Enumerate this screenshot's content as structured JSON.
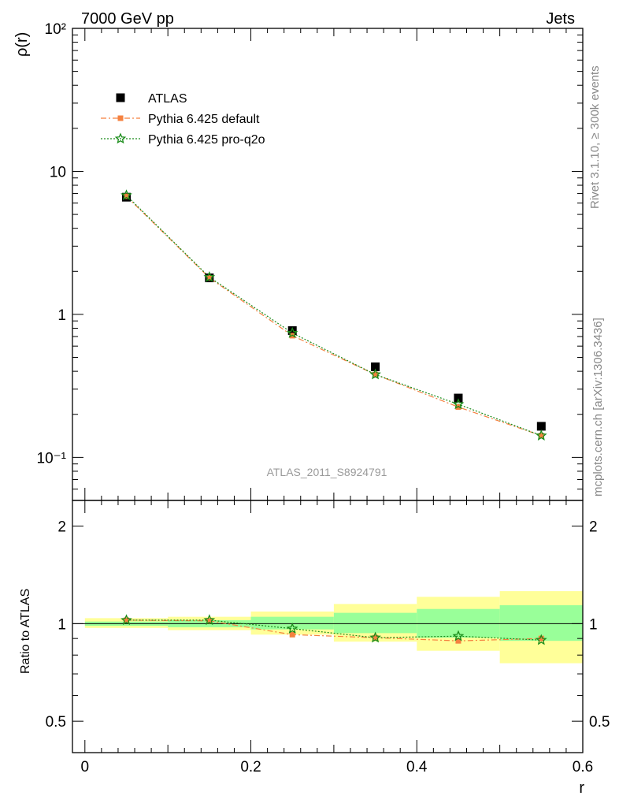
{
  "header": {
    "left": "7000 GeV pp",
    "right": "Jets"
  },
  "side_labels": {
    "rivet": "Rivet 3.1.10, ≥ 300k events",
    "mcplots": "mcplots.cern.ch [arXiv:1306.3436]"
  },
  "watermark": "ATLAS_2011_S8924791",
  "colors": {
    "atlas": "#000000",
    "pythia_default": "#f5813f",
    "pythia_proq2o": "#1a8c1a",
    "band_inner": "#99ff99",
    "band_outer": "#ffff99"
  },
  "chart_data": [
    {
      "type": "scatter",
      "panel": "main",
      "ylabel": "ρ(r)",
      "y_scale": "log",
      "ylim": [
        0.05,
        100
      ],
      "xlim": [
        -0.015,
        0.6
      ],
      "y_tick_labels": [
        "10⁻¹",
        "1",
        "10",
        "10²"
      ],
      "legend_position": "upper-left",
      "x": [
        0.05,
        0.15,
        0.25,
        0.35,
        0.45,
        0.55
      ],
      "series": [
        {
          "name": "ATLAS",
          "values": [
            6.6,
            1.8,
            0.77,
            0.43,
            0.26,
            0.165
          ]
        },
        {
          "name": "Pythia 6.425 default",
          "values": [
            6.7,
            1.8,
            0.71,
            0.38,
            0.225,
            0.142
          ]
        },
        {
          "name": "Pythia 6.425 pro-q2o",
          "values": [
            6.8,
            1.82,
            0.74,
            0.38,
            0.235,
            0.142
          ]
        }
      ]
    },
    {
      "type": "line",
      "panel": "ratio",
      "ylabel": "Ratio to ATLAS",
      "xlabel": "r",
      "y_scale": "log",
      "ylim": [
        0.4,
        2.4
      ],
      "xlim": [
        -0.015,
        0.6
      ],
      "x_tick_labels": [
        "0",
        "0.2",
        "0.4",
        "0.6"
      ],
      "y_tick_labels": [
        "0.5",
        "1",
        "2"
      ],
      "x": [
        0.05,
        0.15,
        0.25,
        0.35,
        0.45,
        0.55
      ],
      "bins": [
        [
          0.0,
          0.1
        ],
        [
          0.1,
          0.2
        ],
        [
          0.2,
          0.3
        ],
        [
          0.3,
          0.4
        ],
        [
          0.4,
          0.5
        ],
        [
          0.5,
          0.6
        ]
      ],
      "band_inner": [
        [
          0.985,
          1.015
        ],
        [
          0.975,
          1.025
        ],
        [
          0.96,
          1.05
        ],
        [
          0.935,
          1.08
        ],
        [
          0.905,
          1.11
        ],
        [
          0.885,
          1.14
        ]
      ],
      "band_outer": [
        [
          0.97,
          1.04
        ],
        [
          0.955,
          1.05
        ],
        [
          0.925,
          1.09
        ],
        [
          0.88,
          1.15
        ],
        [
          0.825,
          1.21
        ],
        [
          0.755,
          1.26
        ]
      ],
      "series": [
        {
          "name": "Pythia 6.425 default",
          "values": [
            1.025,
            1.02,
            0.925,
            0.905,
            0.885,
            0.9
          ]
        },
        {
          "name": "Pythia 6.425 pro-q2o",
          "values": [
            1.025,
            1.025,
            0.965,
            0.905,
            0.915,
            0.89
          ]
        }
      ]
    }
  ]
}
